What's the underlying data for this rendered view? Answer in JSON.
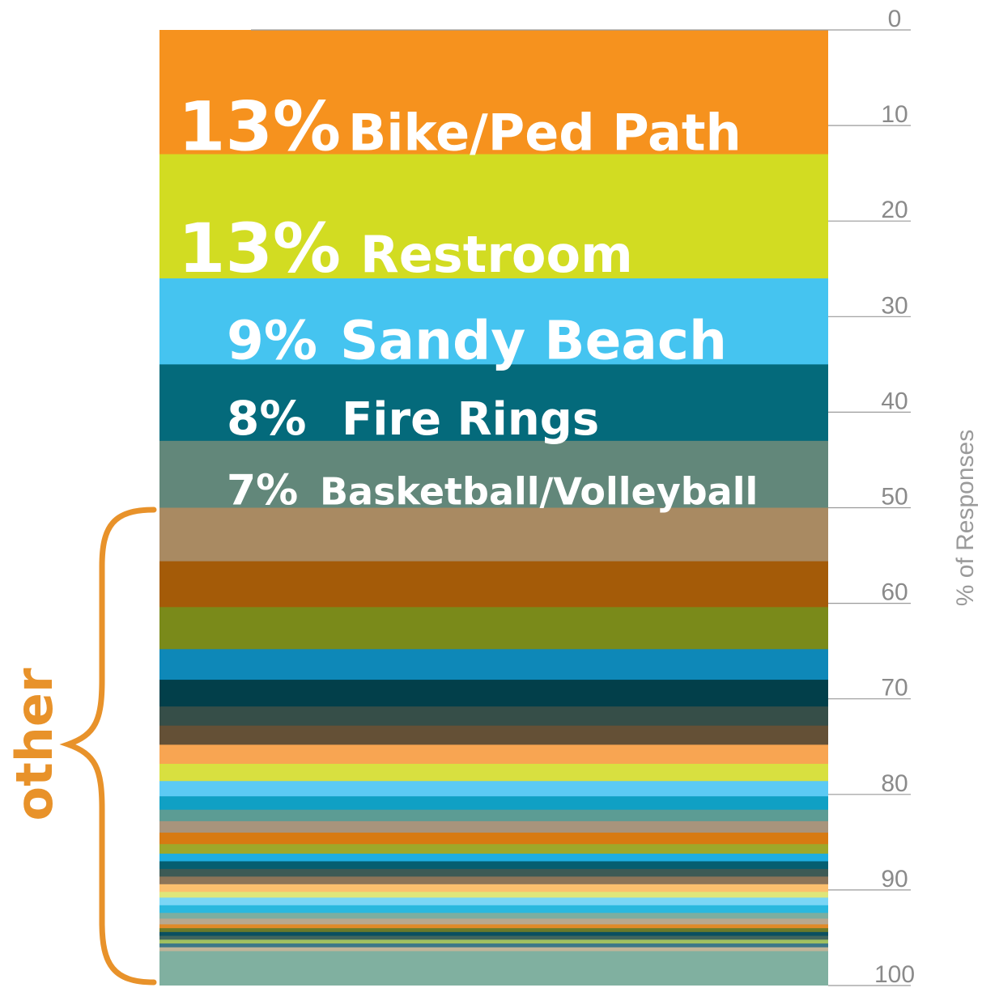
{
  "chart_data": {
    "type": "bar",
    "orientation": "stacked-vertical",
    "ylabel": "% of Responses",
    "ylim": [
      0,
      100
    ],
    "yticks": [
      0,
      10,
      20,
      30,
      40,
      50,
      60,
      70,
      80,
      90,
      100
    ],
    "labeled_segments": [
      {
        "pct_label": "13%",
        "name": "Bike/Ped Path",
        "value": 13,
        "color": "#f6921e"
      },
      {
        "pct_label": "13%",
        "name": "Restroom",
        "value": 13,
        "color": "#d2dc22"
      },
      {
        "pct_label": "9%",
        "name": "Sandy Beach",
        "value": 9,
        "color": "#45c4f0"
      },
      {
        "pct_label": "8%",
        "name": "Fire Rings",
        "value": 8,
        "color": "#046a7b"
      },
      {
        "pct_label": "7%",
        "name": "Basketball/Volleyball",
        "value": 7,
        "color": "#62877a"
      }
    ],
    "other_label": "other",
    "other_segments": [
      {
        "value": 5.6,
        "color": "#a98a62"
      },
      {
        "value": 4.8,
        "color": "#a45b08"
      },
      {
        "value": 4.4,
        "color": "#7a8a1a"
      },
      {
        "value": 3.2,
        "color": "#0e88b8"
      },
      {
        "value": 2.8,
        "color": "#023f4a"
      },
      {
        "value": 2.0,
        "color": "#364e48"
      },
      {
        "value": 2.0,
        "color": "#645036"
      },
      {
        "value": 2.0,
        "color": "#f8a552"
      },
      {
        "value": 1.8,
        "color": "#d8e040"
      },
      {
        "value": 1.6,
        "color": "#5ccaf4"
      },
      {
        "value": 1.4,
        "color": "#10a0c4"
      },
      {
        "value": 1.2,
        "color": "#5c9c94"
      },
      {
        "value": 1.2,
        "color": "#a8947c"
      },
      {
        "value": 1.2,
        "color": "#d77a12"
      },
      {
        "value": 1.0,
        "color": "#9ea82a"
      },
      {
        "value": 0.8,
        "color": "#1eaee0"
      },
      {
        "value": 0.8,
        "color": "#055e70"
      },
      {
        "value": 0.8,
        "color": "#3d5a55"
      },
      {
        "value": 0.8,
        "color": "#8c7458"
      },
      {
        "value": 0.8,
        "color": "#fbbf6e"
      },
      {
        "value": 0.6,
        "color": "#dfe67a"
      },
      {
        "value": 0.8,
        "color": "#7bd6f6"
      },
      {
        "value": 0.8,
        "color": "#2ab8de"
      },
      {
        "value": 0.6,
        "color": "#7caea0"
      },
      {
        "value": 0.6,
        "color": "#b8a890"
      },
      {
        "value": 0.4,
        "color": "#e08a28"
      },
      {
        "value": 0.4,
        "color": "#6a7a2a"
      },
      {
        "value": 0.4,
        "color": "#0a5060"
      },
      {
        "value": 0.4,
        "color": "#40665e"
      },
      {
        "value": 0.4,
        "color": "#a0c060"
      },
      {
        "value": 0.4,
        "color": "#3c7888"
      },
      {
        "value": 0.4,
        "color": "#c0b498"
      },
      {
        "value": 0.4,
        "color": "#80b0a0"
      }
    ]
  }
}
